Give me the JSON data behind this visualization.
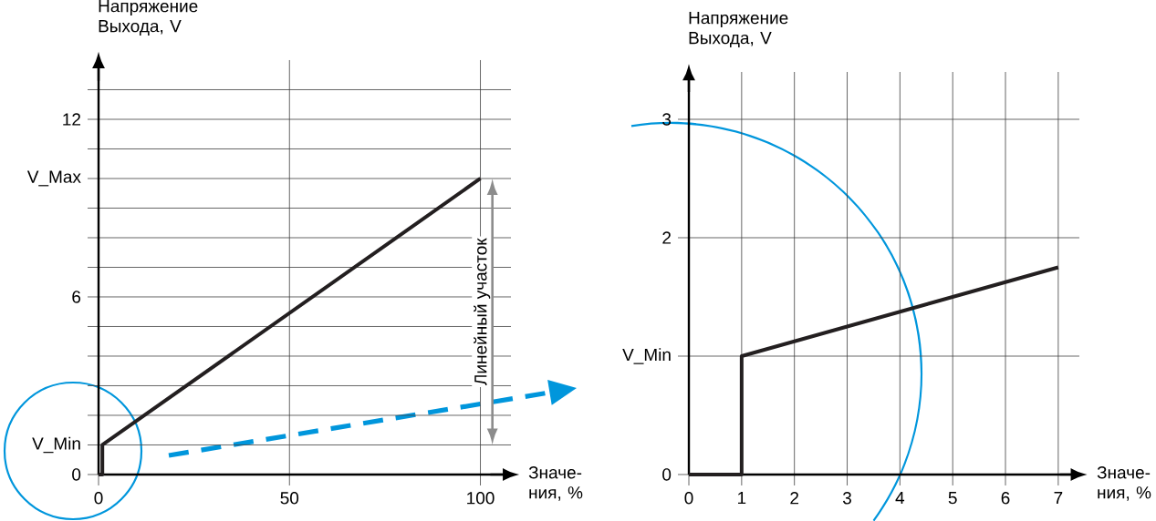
{
  "chart_data": [
    {
      "type": "line",
      "ylabel": "Напряжение Выхода, V",
      "xlabel": "Значе-ния, %",
      "color": "#231f20",
      "x": [
        0,
        1,
        1,
        100
      ],
      "values": [
        0,
        0,
        1,
        10
      ],
      "xlim": [
        0,
        108
      ],
      "ylim": [
        0,
        14
      ],
      "xticks": [
        0,
        50,
        100
      ],
      "yticks": [
        0,
        {
          "value": 1,
          "label": "V_Min"
        },
        {
          "value": 2,
          "label": null
        },
        {
          "value": 3,
          "label": null
        },
        {
          "value": 4,
          "label": null
        },
        {
          "value": 5,
          "label": null
        },
        6,
        {
          "value": 7,
          "label": null
        },
        {
          "value": 8,
          "label": null
        },
        {
          "value": 9,
          "label": null
        },
        {
          "value": 10,
          "label": "V_Max"
        },
        {
          "value": 11,
          "label": null
        },
        12,
        {
          "value": 13,
          "label": null
        }
      ],
      "grid": true,
      "annotations": [
        "Линейный участок"
      ]
    },
    {
      "type": "line",
      "ylabel": "Напряжение Выхода, V",
      "xlabel": "Значе-ния, %",
      "color": "#231f20",
      "x": [
        0,
        1,
        1,
        7
      ],
      "values": [
        0,
        0,
        1,
        1.75
      ],
      "xlim": [
        0,
        7.4
      ],
      "ylim": [
        0,
        3.4
      ],
      "xticks": [
        0,
        1,
        2,
        3,
        4,
        5,
        6,
        7
      ],
      "yticks": [
        0,
        {
          "value": 1,
          "label": "V_Min"
        },
        2,
        3
      ],
      "grid": true
    }
  ]
}
